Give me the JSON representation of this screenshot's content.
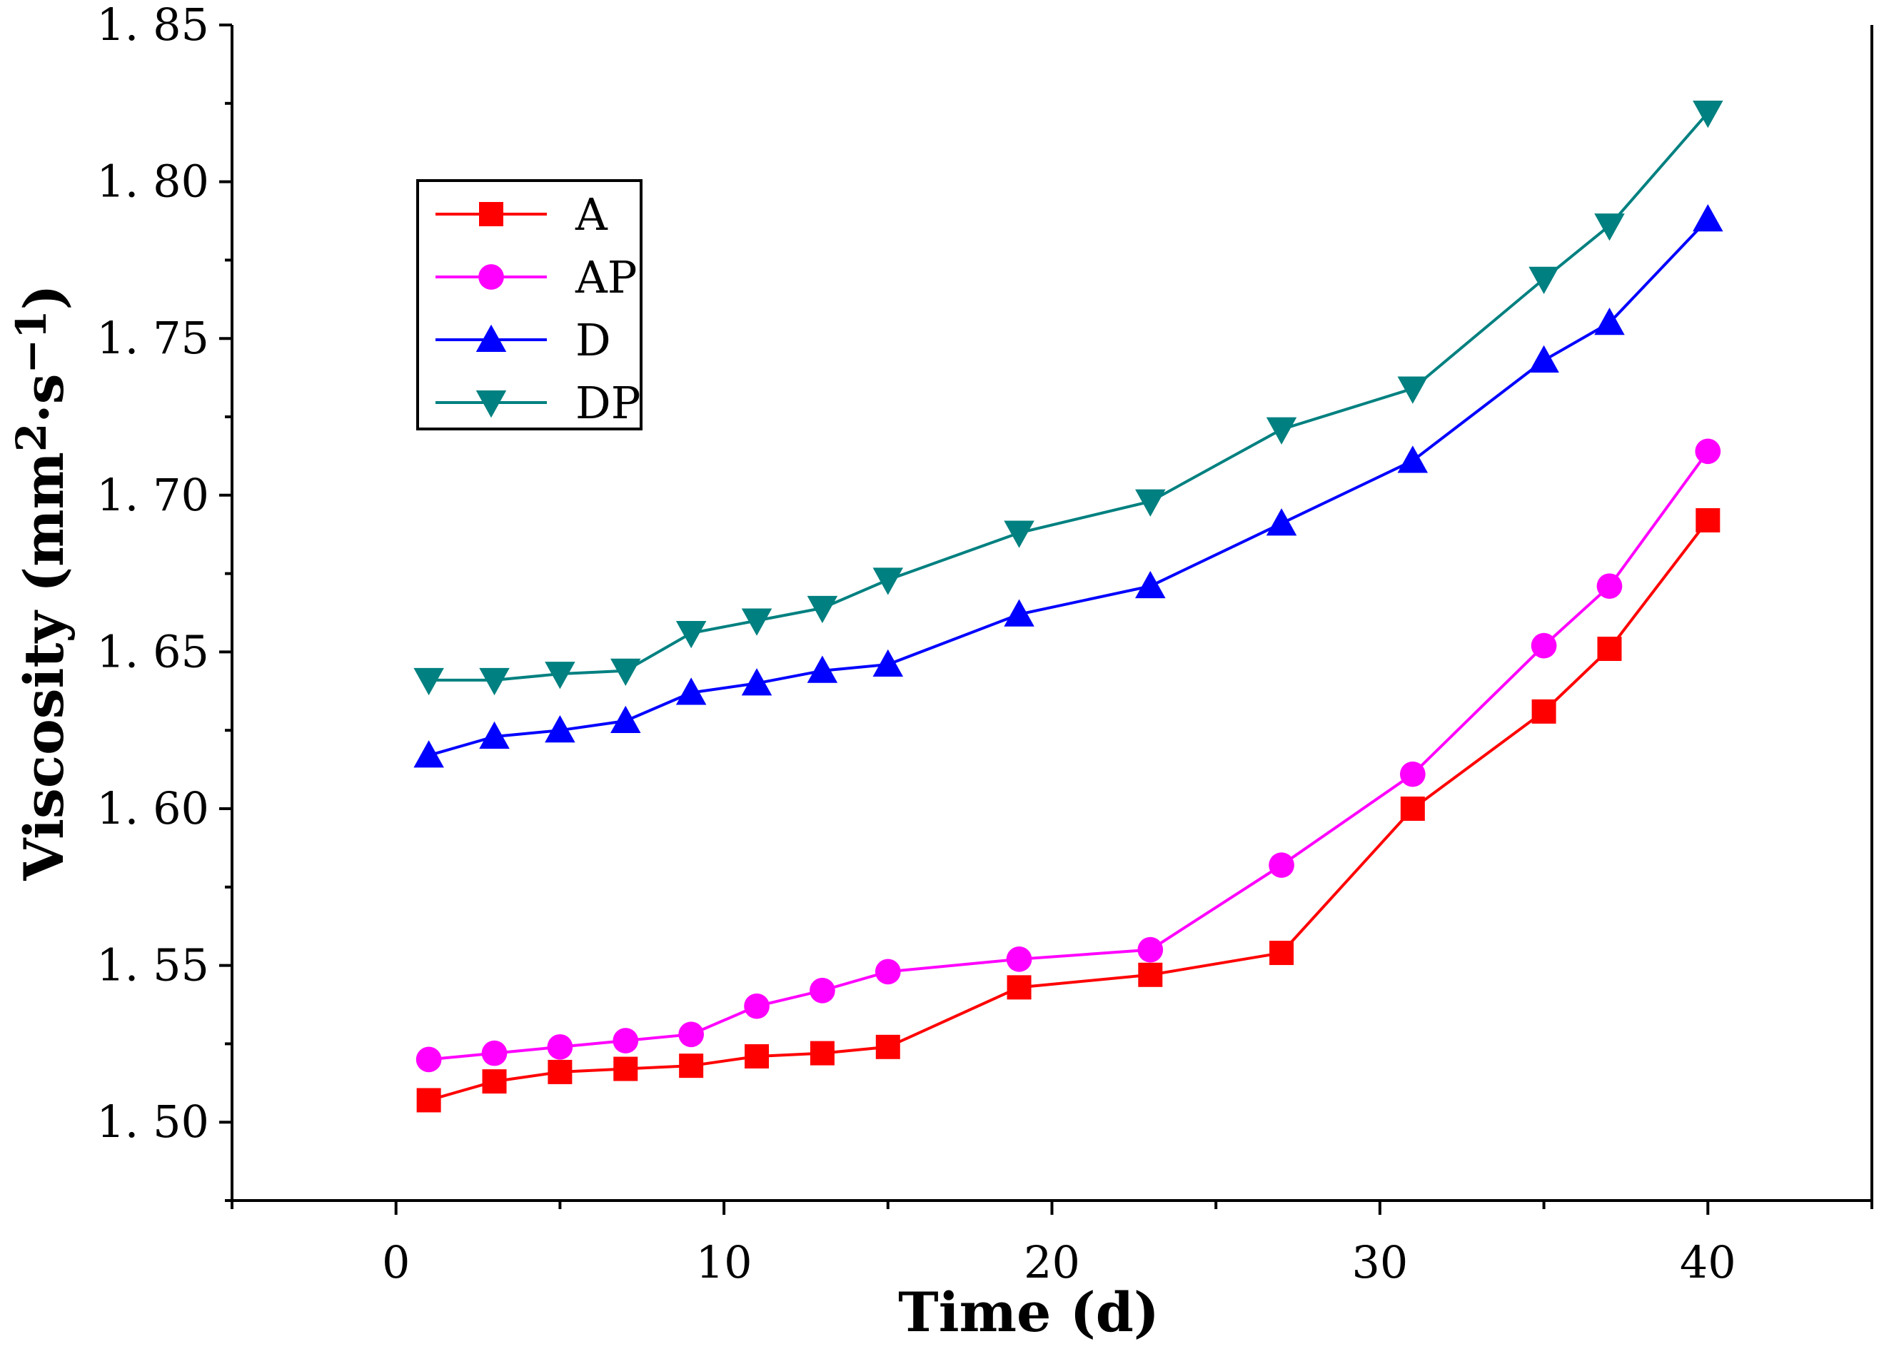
{
  "chart_data": {
    "type": "line",
    "title": "",
    "xlabel": "Time (d)",
    "ylabel": "Viscosity (mm2·s−1)",
    "ylabel_parts": [
      "Viscosity (mm",
      "2",
      "·s",
      "−1",
      ")"
    ],
    "xlim": [
      -5,
      45
    ],
    "ylim": [
      1.475,
      1.85
    ],
    "xticks": [
      0,
      10,
      20,
      30,
      40
    ],
    "xtick_labels": [
      "0",
      "10",
      "20",
      "30",
      "40"
    ],
    "yticks": [
      1.5,
      1.55,
      1.6,
      1.65,
      1.7,
      1.75,
      1.8,
      1.85
    ],
    "ytick_labels": [
      "1. 50",
      "1. 55",
      "1. 60",
      "1. 65",
      "1. 70",
      "1. 75",
      "1. 80",
      "1. 85"
    ],
    "grid": false,
    "legend_position": "top-left",
    "x": [
      1,
      3,
      5,
      7,
      9,
      11,
      13,
      15,
      19,
      23,
      27,
      31,
      35,
      37,
      40
    ],
    "series": [
      {
        "name": "A",
        "color": "#ff0000",
        "marker": "square",
        "values": [
          1.507,
          1.513,
          1.516,
          1.517,
          1.518,
          1.521,
          1.522,
          1.524,
          1.543,
          1.547,
          1.554,
          1.6,
          1.631,
          1.651,
          1.692
        ]
      },
      {
        "name": "AP",
        "color": "#ff00ff",
        "marker": "circle",
        "values": [
          1.52,
          1.522,
          1.524,
          1.526,
          1.528,
          1.537,
          1.542,
          1.548,
          1.552,
          1.555,
          1.582,
          1.611,
          1.652,
          1.671,
          1.714
        ]
      },
      {
        "name": "D",
        "color": "#0000ff",
        "marker": "triangle-up",
        "values": [
          1.617,
          1.623,
          1.625,
          1.628,
          1.637,
          1.64,
          1.644,
          1.646,
          1.662,
          1.671,
          1.691,
          1.711,
          1.743,
          1.755,
          1.788
        ]
      },
      {
        "name": "DP",
        "color": "#008080",
        "marker": "triangle-down",
        "values": [
          1.641,
          1.641,
          1.643,
          1.644,
          1.656,
          1.66,
          1.664,
          1.673,
          1.688,
          1.698,
          1.721,
          1.734,
          1.769,
          1.786,
          1.822
        ]
      }
    ]
  }
}
